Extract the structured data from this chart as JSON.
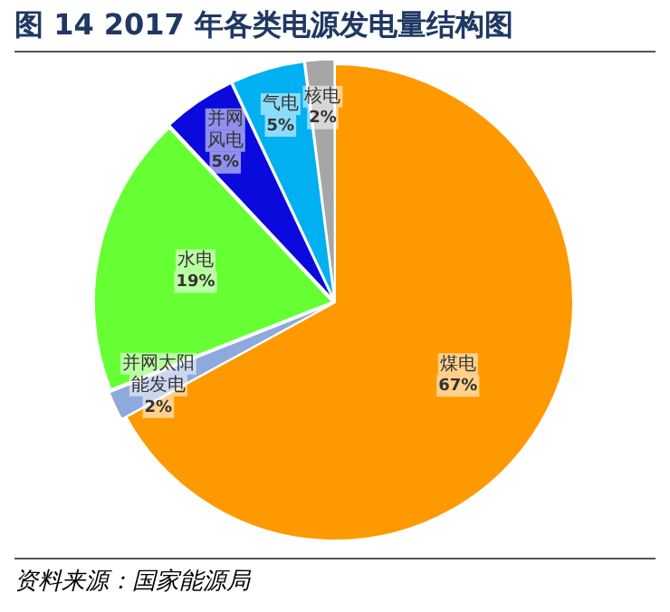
{
  "chart_data": {
    "type": "pie",
    "title": "图 14 2017 年各类电源发电量结构图",
    "categories": [
      "煤电",
      "并网太阳能发电",
      "水电",
      "并网风电",
      "气电",
      "核电"
    ],
    "values": [
      67,
      2,
      19,
      5,
      5,
      2
    ],
    "colors": [
      "#ff9900",
      "#8ea9db",
      "#66ff33",
      "#0a0adc",
      "#00b0f0",
      "#a6a6a6"
    ],
    "value_labels": [
      "67%",
      "2%",
      "19%",
      "5%",
      "5%",
      "2%"
    ],
    "annotations": [
      "资料来源：国家能源局"
    ],
    "legend": false
  }
}
